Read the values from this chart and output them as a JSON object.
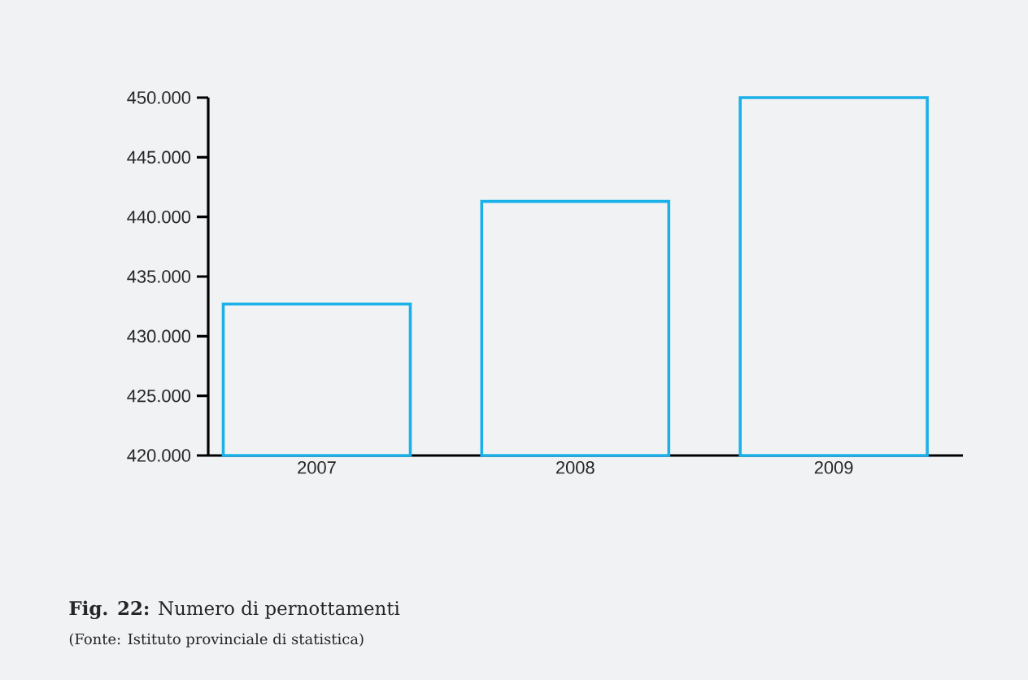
{
  "chart_data": {
    "type": "bar",
    "title": "**Fig. 22:** Numero di pernottamenti",
    "annotations": [
      "(Fonte: Istituto provinciale di statistica)"
    ],
    "categories": [
      "2007",
      "2008",
      "2009"
    ],
    "values": [
      432700,
      441300,
      450000
    ],
    "color": "#1ab0e8",
    "ylim": [
      420000,
      450000
    ],
    "yticks": [
      {
        "value": 420000,
        "label": "420.000"
      },
      {
        "value": 425000,
        "label": "425.000"
      },
      {
        "value": 430000,
        "label": "430.000"
      },
      {
        "value": 435000,
        "label": "435.000"
      },
      {
        "value": 440000,
        "label": "440.000"
      },
      {
        "value": 445000,
        "label": "445.000"
      },
      {
        "value": 450000,
        "label": "450.000"
      }
    ]
  }
}
